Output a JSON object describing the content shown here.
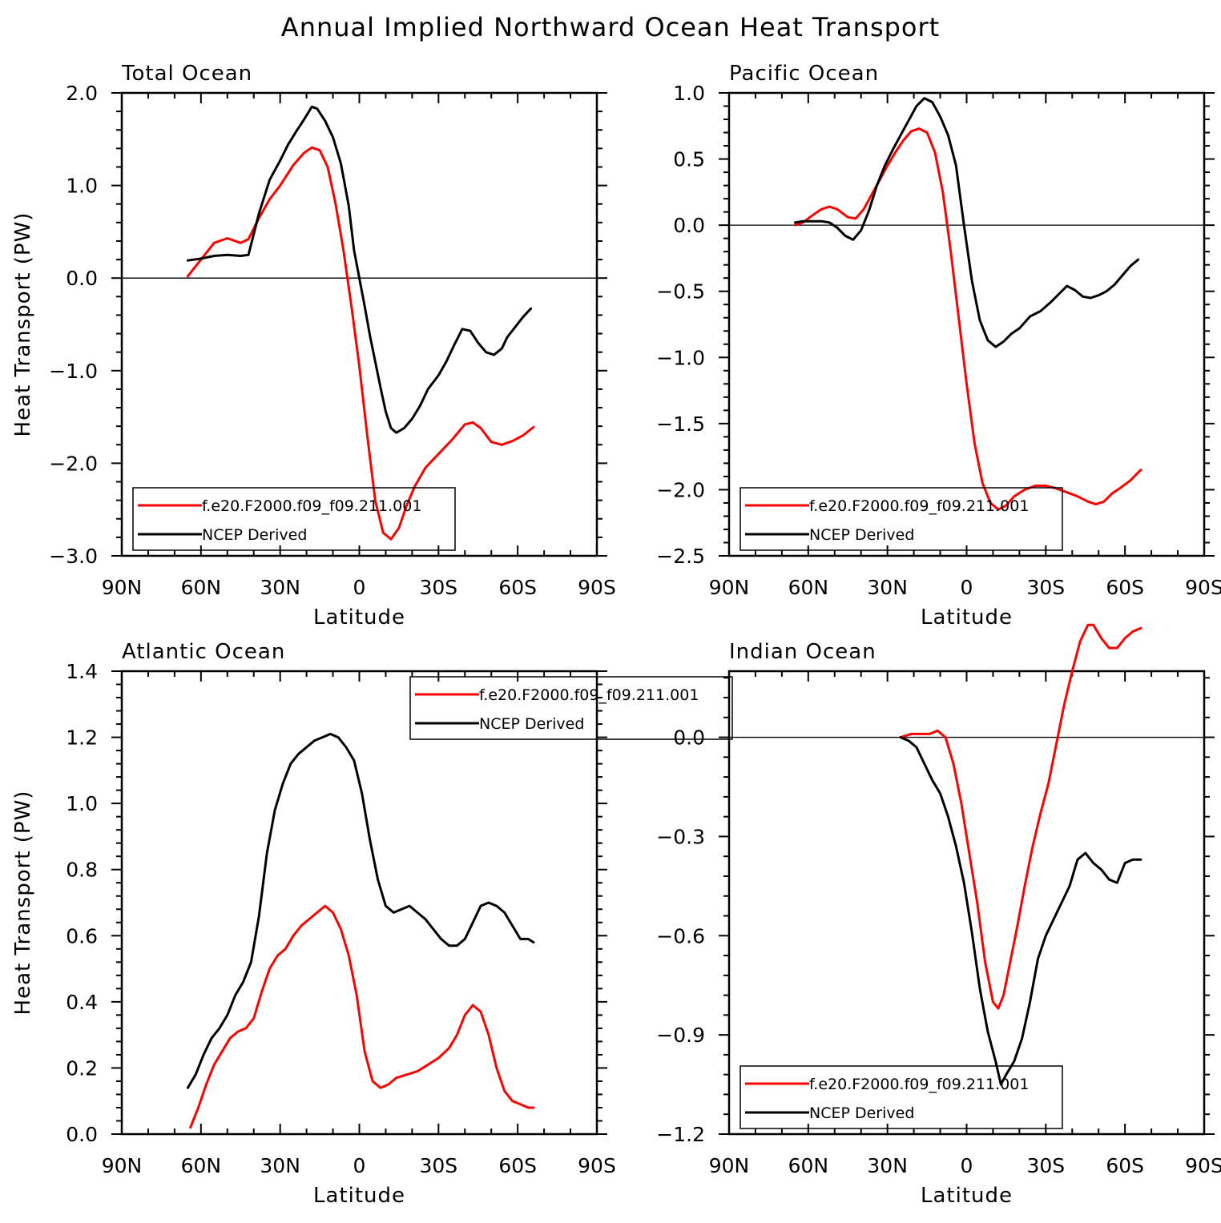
{
  "figure": {
    "title": "Annual Implied Northward Ocean Heat Transport",
    "ylabel": "Heat Transport (PW)",
    "xlabel": "Latitude",
    "xtick_labels": [
      "90N",
      "60N",
      "30N",
      "0",
      "30S",
      "60S",
      "90S"
    ],
    "legend": [
      "f.e20.F2000.f09_f09.211.001",
      "NCEP Derived"
    ],
    "colors": {
      "model": "#ff0000",
      "ncep": "#000000"
    }
  },
  "chart_data": [
    {
      "type": "line",
      "panel": "Total Ocean",
      "title": "Total Ocean",
      "xlabel": "Latitude",
      "ylabel": "Heat Transport (PW)",
      "xlim": [
        90,
        -90
      ],
      "ylim": [
        -3.0,
        2.0
      ],
      "yticks": [
        -3.0,
        -2.0,
        -1.0,
        0.0,
        1.0,
        2.0
      ],
      "ytick_labels": [
        "−3.0",
        "−2.0",
        "−1.0",
        "0.0",
        "1.0",
        "2.0"
      ],
      "legend": [
        "f.e20.F2000.f09_f09.211.001",
        "NCEP Derived"
      ],
      "series": [
        {
          "name": "f.e20.F2000.f09_f09.211.001",
          "color": "#ff0000",
          "x": [
            65,
            60,
            55,
            50,
            45,
            42,
            38,
            34,
            30,
            25,
            21,
            18,
            15,
            12,
            9,
            6,
            3,
            0,
            -3,
            -6,
            -9,
            -12,
            -15,
            -18,
            -21,
            -25,
            -30,
            -35,
            -40,
            -43,
            -46,
            -50,
            -54,
            -58,
            -62,
            -66
          ],
          "y": [
            0.02,
            0.2,
            0.38,
            0.43,
            0.38,
            0.42,
            0.65,
            0.85,
            1.0,
            1.22,
            1.35,
            1.41,
            1.38,
            1.2,
            0.8,
            0.3,
            -0.3,
            -0.95,
            -1.7,
            -2.4,
            -2.75,
            -2.82,
            -2.7,
            -2.45,
            -2.25,
            -2.05,
            -1.9,
            -1.75,
            -1.58,
            -1.56,
            -1.62,
            -1.77,
            -1.8,
            -1.76,
            -1.7,
            -1.61
          ]
        },
        {
          "name": "NCEP Derived",
          "color": "#000000",
          "x": [
            65,
            60,
            55,
            50,
            45,
            42,
            38,
            34,
            30,
            27,
            24,
            21,
            18,
            16,
            13,
            10,
            7,
            4,
            2,
            0,
            -2,
            -4,
            -6,
            -8,
            -10,
            -12,
            -14,
            -17,
            -20,
            -23,
            -26,
            -30,
            -33,
            -36,
            -39,
            -42,
            -45,
            -48,
            -51,
            -54,
            -56,
            -59,
            -62,
            -65
          ],
          "y": [
            0.19,
            0.21,
            0.24,
            0.25,
            0.24,
            0.25,
            0.7,
            1.06,
            1.27,
            1.44,
            1.58,
            1.71,
            1.85,
            1.83,
            1.7,
            1.52,
            1.24,
            0.78,
            0.3,
            0.0,
            -0.3,
            -0.62,
            -0.9,
            -1.18,
            -1.44,
            -1.62,
            -1.67,
            -1.62,
            -1.52,
            -1.38,
            -1.2,
            -1.05,
            -0.9,
            -0.72,
            -0.55,
            -0.57,
            -0.7,
            -0.8,
            -0.83,
            -0.76,
            -0.64,
            -0.53,
            -0.42,
            -0.33
          ]
        }
      ]
    },
    {
      "type": "line",
      "panel": "Pacific Ocean",
      "title": "Pacific Ocean",
      "xlabel": "Latitude",
      "ylabel": "",
      "xlim": [
        90,
        -90
      ],
      "ylim": [
        -2.5,
        1.0
      ],
      "yticks": [
        -2.5,
        -2.0,
        -1.5,
        -1.0,
        -0.5,
        0.0,
        0.5,
        1.0
      ],
      "ytick_labels": [
        "−2.5",
        "−2.0",
        "−1.5",
        "−1.0",
        "−0.5",
        "0.0",
        "0.5",
        "1.0"
      ],
      "legend": [
        "f.e20.F2000.f09_f09.211.001",
        "NCEP Derived"
      ],
      "series": [
        {
          "name": "f.e20.F2000.f09_f09.211.001",
          "color": "#ff0000",
          "x": [
            65,
            62,
            58,
            55,
            52,
            49,
            45,
            42,
            39,
            36,
            33,
            30,
            27,
            24,
            21,
            18,
            15,
            12,
            9,
            6,
            3,
            0,
            -3,
            -6,
            -9,
            -12,
            -15,
            -18,
            -22,
            -26,
            -30,
            -34,
            -38,
            -42,
            -46,
            -49,
            -52,
            -55,
            -58,
            -62,
            -66
          ],
          "y": [
            0.0,
            0.02,
            0.08,
            0.12,
            0.14,
            0.12,
            0.06,
            0.05,
            0.12,
            0.23,
            0.34,
            0.45,
            0.55,
            0.64,
            0.71,
            0.73,
            0.7,
            0.55,
            0.25,
            -0.2,
            -0.7,
            -1.2,
            -1.65,
            -1.95,
            -2.1,
            -2.15,
            -2.12,
            -2.05,
            -2.0,
            -1.97,
            -1.97,
            -1.99,
            -2.02,
            -2.05,
            -2.09,
            -2.11,
            -2.09,
            -2.03,
            -1.99,
            -1.93,
            -1.85
          ]
        },
        {
          "name": "NCEP Derived",
          "color": "#000000",
          "x": [
            65,
            62,
            58,
            55,
            52,
            49,
            46,
            43,
            40,
            37,
            34,
            31,
            28,
            25,
            22,
            19,
            16,
            13,
            10,
            7,
            4,
            1,
            -2,
            -5,
            -8,
            -11,
            -14,
            -17,
            -20,
            -24,
            -28,
            -32,
            -35,
            -38,
            -41,
            -44,
            -47,
            -50,
            -53,
            -56,
            -59,
            -62,
            -65
          ],
          "y": [
            0.02,
            0.03,
            0.03,
            0.03,
            0.02,
            -0.02,
            -0.08,
            -0.11,
            -0.04,
            0.11,
            0.3,
            0.45,
            0.57,
            0.68,
            0.79,
            0.9,
            0.96,
            0.93,
            0.82,
            0.68,
            0.45,
            0.0,
            -0.42,
            -0.72,
            -0.87,
            -0.92,
            -0.88,
            -0.82,
            -0.78,
            -0.69,
            -0.65,
            -0.58,
            -0.52,
            -0.46,
            -0.49,
            -0.54,
            -0.55,
            -0.53,
            -0.5,
            -0.45,
            -0.38,
            -0.31,
            -0.26
          ]
        }
      ]
    },
    {
      "type": "line",
      "panel": "Atlantic Ocean",
      "title": "Atlantic Ocean",
      "xlabel": "Latitude",
      "ylabel": "Heat Transport (PW)",
      "xlim": [
        90,
        -90
      ],
      "ylim": [
        0.0,
        1.4
      ],
      "yticks": [
        0.0,
        0.2,
        0.4,
        0.6,
        0.8,
        1.0,
        1.2,
        1.4
      ],
      "ytick_labels": [
        "0.0",
        "0.2",
        "0.4",
        "0.6",
        "0.8",
        "1.0",
        "1.2",
        "1.4"
      ],
      "legend": [
        "f.e20.F2000.f09_f09.211.001",
        "NCEP Derived"
      ],
      "series": [
        {
          "name": "f.e20.F2000.f09_f09.211.001",
          "color": "#ff0000",
          "x": [
            64,
            61,
            58,
            55,
            52,
            49,
            46,
            43,
            40,
            37,
            34,
            31,
            28,
            25,
            22,
            19,
            16,
            13,
            10,
            7,
            4,
            1,
            -2,
            -5,
            -8,
            -11,
            -14,
            -18,
            -22,
            -26,
            -30,
            -34,
            -37,
            -40,
            -43,
            -46,
            -49,
            -52,
            -55,
            -58,
            -61,
            -64,
            -66
          ],
          "y": [
            0.02,
            0.08,
            0.15,
            0.21,
            0.25,
            0.29,
            0.31,
            0.32,
            0.35,
            0.43,
            0.5,
            0.54,
            0.56,
            0.6,
            0.63,
            0.65,
            0.67,
            0.69,
            0.67,
            0.62,
            0.54,
            0.42,
            0.25,
            0.16,
            0.14,
            0.15,
            0.17,
            0.18,
            0.19,
            0.21,
            0.23,
            0.26,
            0.3,
            0.36,
            0.39,
            0.37,
            0.3,
            0.2,
            0.13,
            0.1,
            0.09,
            0.08,
            0.08
          ]
        },
        {
          "name": "NCEP Derived",
          "color": "#000000",
          "x": [
            65,
            62,
            59,
            56,
            53,
            50,
            47,
            44,
            41,
            38,
            35,
            32,
            29,
            26,
            23,
            20,
            17,
            14,
            11,
            8,
            5,
            2,
            -1,
            -4,
            -7,
            -10,
            -13,
            -16,
            -19,
            -22,
            -25,
            -28,
            -31,
            -34,
            -37,
            -40,
            -43,
            -46,
            -49,
            -52,
            -55,
            -58,
            -61,
            -64,
            -66
          ],
          "y": [
            0.14,
            0.18,
            0.24,
            0.29,
            0.32,
            0.36,
            0.42,
            0.46,
            0.52,
            0.66,
            0.85,
            0.98,
            1.06,
            1.12,
            1.15,
            1.17,
            1.19,
            1.2,
            1.21,
            1.2,
            1.17,
            1.13,
            1.03,
            0.89,
            0.77,
            0.69,
            0.67,
            0.68,
            0.69,
            0.67,
            0.65,
            0.62,
            0.59,
            0.57,
            0.57,
            0.59,
            0.64,
            0.69,
            0.7,
            0.69,
            0.67,
            0.63,
            0.59,
            0.59,
            0.58
          ]
        }
      ]
    },
    {
      "type": "line",
      "panel": "Indian Ocean",
      "title": "Indian Ocean",
      "xlabel": "Latitude",
      "ylabel": "",
      "xlim": [
        90,
        -90
      ],
      "ylim": [
        -1.2,
        0.2
      ],
      "yticks": [
        -1.2,
        -0.9,
        -0.6,
        -0.3,
        0.0
      ],
      "ytick_labels": [
        "−1.2",
        "−0.9",
        "−0.6",
        "−0.3",
        "0.0"
      ],
      "legend": [
        "f.e20.F2000.f09_f09.211.001",
        "NCEP Derived"
      ],
      "series": [
        {
          "name": "f.e20.F2000.f09_f09.211.001",
          "color": "#ff0000",
          "x": [
            25,
            21,
            17,
            14,
            11,
            8,
            5,
            2,
            -1,
            -4,
            -7,
            -10,
            -12,
            -14,
            -16,
            -19,
            -22,
            -25,
            -28,
            -31,
            -34,
            -37,
            -40,
            -43,
            -46,
            -48,
            -51,
            -54,
            -57,
            -60,
            -63,
            -66
          ],
          "y": [
            0.0,
            0.01,
            0.01,
            0.01,
            0.02,
            0.0,
            -0.08,
            -0.2,
            -0.35,
            -0.5,
            -0.68,
            -0.8,
            -0.82,
            -0.78,
            -0.7,
            -0.58,
            -0.45,
            -0.33,
            -0.23,
            -0.14,
            -0.02,
            0.1,
            0.2,
            0.29,
            0.34,
            0.34,
            0.3,
            0.27,
            0.27,
            0.3,
            0.32,
            0.33
          ]
        },
        {
          "name": "NCEP Derived",
          "color": "#000000",
          "x": [
            25,
            22,
            19,
            16,
            13,
            10,
            7,
            4,
            1,
            -2,
            -5,
            -8,
            -11,
            -13,
            -15,
            -18,
            -21,
            -24,
            -27,
            -30,
            -33,
            -36,
            -39,
            -42,
            -45,
            -48,
            -51,
            -54,
            -57,
            -60,
            -63,
            -66
          ],
          "y": [
            0.0,
            -0.01,
            -0.03,
            -0.08,
            -0.13,
            -0.17,
            -0.24,
            -0.33,
            -0.44,
            -0.59,
            -0.76,
            -0.89,
            -0.98,
            -1.05,
            -1.02,
            -0.98,
            -0.91,
            -0.8,
            -0.67,
            -0.6,
            -0.55,
            -0.5,
            -0.45,
            -0.37,
            -0.35,
            -0.38,
            -0.4,
            -0.43,
            -0.44,
            -0.38,
            -0.37,
            -0.37
          ]
        }
      ]
    }
  ]
}
